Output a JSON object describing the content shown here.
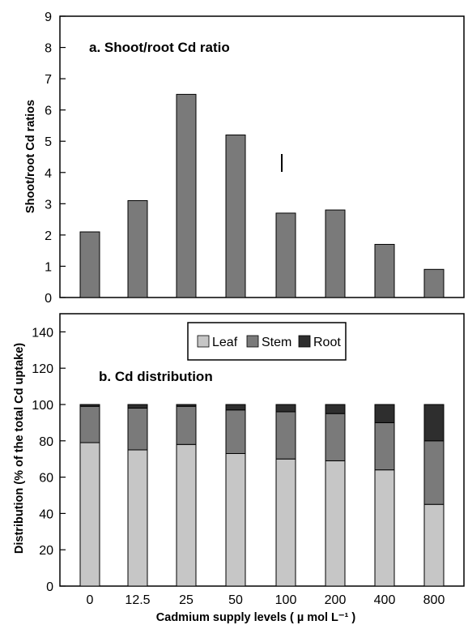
{
  "chart_data": [
    {
      "type": "bar",
      "title": "a. Shoot/root Cd ratio",
      "ylabel": "Shoot/root Cd ratios",
      "xlabel": "",
      "ylim": [
        0,
        9
      ],
      "yticks": [
        "0",
        "1",
        "2",
        "3",
        "4",
        "5",
        "6",
        "7",
        "8",
        "9"
      ],
      "categories": [
        "0",
        "12.5",
        "25",
        "50",
        "100",
        "200",
        "400",
        "800"
      ],
      "values": [
        2.1,
        3.1,
        6.5,
        5.2,
        2.7,
        2.8,
        1.7,
        0.9
      ],
      "bar_color": "#7a7a7a",
      "grid": false
    },
    {
      "type": "bar",
      "stacked": true,
      "title": "b. Cd distribution",
      "ylabel": "Distribution (% of the total Cd uptake)",
      "xlabel": "Cadmium supply levels ( µ mol L⁻¹ )",
      "ylim": [
        0,
        150
      ],
      "yticks": [
        "0",
        "20",
        "40",
        "60",
        "80",
        "100",
        "120",
        "140"
      ],
      "categories": [
        "0",
        "12.5",
        "25",
        "50",
        "100",
        "200",
        "400",
        "800"
      ],
      "series": [
        {
          "name": "Leaf",
          "color": "#c6c6c6",
          "values": [
            79,
            75,
            78,
            73,
            70,
            69,
            64,
            45
          ]
        },
        {
          "name": "Stem",
          "color": "#7a7a7a",
          "values": [
            20,
            23,
            21,
            24,
            26,
            26,
            26,
            35
          ]
        },
        {
          "name": "Root",
          "color": "#2e2e2e",
          "values": [
            1,
            2,
            1,
            3,
            4,
            5,
            10,
            20
          ]
        }
      ],
      "legend": "top-center",
      "grid": false
    }
  ]
}
